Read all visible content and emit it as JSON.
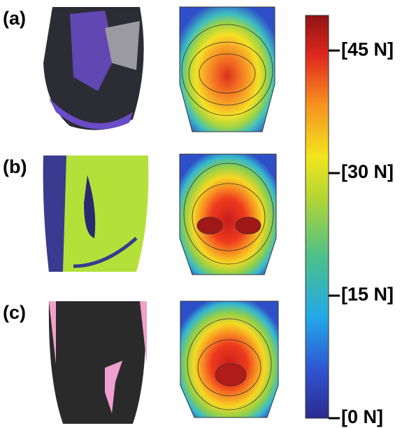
{
  "panels": [
    {
      "label": "(a)"
    },
    {
      "label": "(b)"
    },
    {
      "label": "(c)"
    }
  ],
  "colorbar": {
    "range": [
      0,
      49.3
    ],
    "ticks": [
      {
        "value": 0,
        "label": "[0 N]"
      },
      {
        "value": 15,
        "label": "[15 N]"
      },
      {
        "value": 30,
        "label": "[30 N]"
      },
      {
        "value": 45,
        "label": "[45 N]"
      }
    ]
  }
}
